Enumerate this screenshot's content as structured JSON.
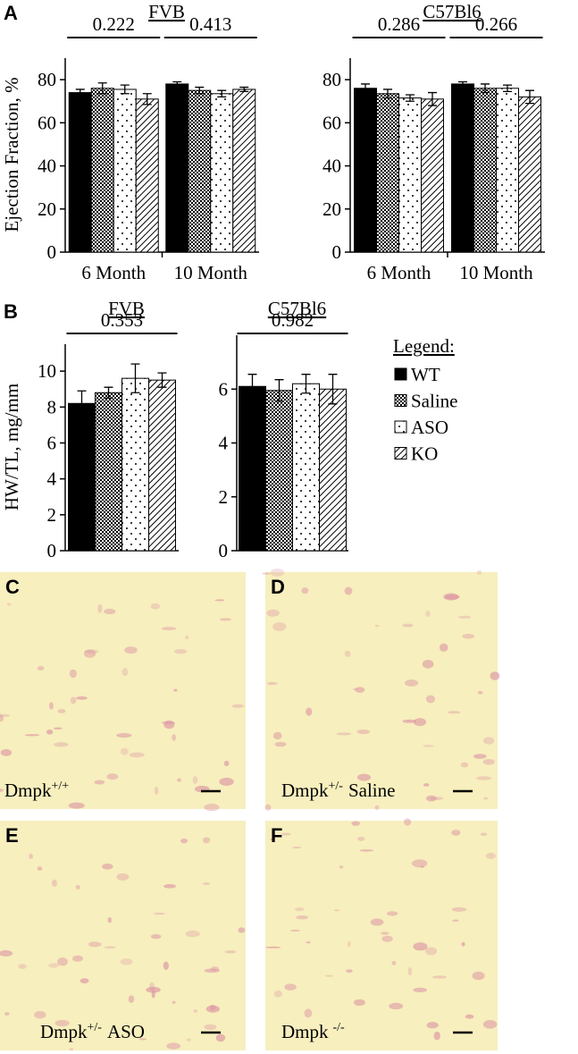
{
  "panels": [
    "A",
    "B",
    "C",
    "D",
    "E",
    "F"
  ],
  "chart_data": [
    {
      "type": "bar",
      "title": "FVB",
      "ylabel": "Ejection Fraction, %",
      "categories": [
        "6 Month",
        "10 Month"
      ],
      "ylim": [
        0,
        90
      ],
      "yticks": [
        0,
        20,
        40,
        60,
        80
      ],
      "annotations": [
        "0.222",
        "0.413"
      ],
      "series": [
        {
          "color": "#000000",
          "pattern": "solid",
          "values": [
            74,
            78
          ],
          "errors": [
            1.5,
            1
          ]
        },
        {
          "color": "#000000",
          "pattern": "checker",
          "values": [
            76,
            75
          ],
          "errors": [
            2.5,
            1.5
          ]
        },
        {
          "color": "#000000",
          "pattern": "dots",
          "values": [
            75.5,
            73.5
          ],
          "errors": [
            2,
            1.5
          ]
        },
        {
          "color": "#000000",
          "pattern": "hatch",
          "values": [
            71,
            75.5
          ],
          "errors": [
            2.5,
            1
          ]
        }
      ]
    },
    {
      "type": "bar",
      "title": "C57Bl6",
      "categories": [
        "6 Month",
        "10 Month"
      ],
      "ylim": [
        0,
        90
      ],
      "yticks": [
        0,
        20,
        40,
        60,
        80
      ],
      "annotations": [
        "0.286",
        "0.266"
      ],
      "series": [
        {
          "color": "#000000",
          "pattern": "solid",
          "values": [
            76,
            78
          ],
          "errors": [
            2,
            1
          ]
        },
        {
          "color": "#000000",
          "pattern": "checker",
          "values": [
            73.5,
            76
          ],
          "errors": [
            2,
            2
          ]
        },
        {
          "color": "#000000",
          "pattern": "dots",
          "values": [
            71.5,
            76
          ],
          "errors": [
            1.5,
            1.5
          ]
        },
        {
          "color": "#000000",
          "pattern": "hatch",
          "values": [
            71,
            72
          ],
          "errors": [
            3,
            3
          ]
        }
      ]
    },
    {
      "type": "bar",
      "title": "FVB",
      "ylabel": "HW/TL, mg/mm",
      "ylim": [
        0,
        11.5
      ],
      "yticks": [
        0,
        2,
        4,
        6,
        8,
        10
      ],
      "annotations": [
        "0.353"
      ],
      "series": [
        {
          "color": "#000000",
          "pattern": "solid",
          "values": [
            8.2
          ],
          "errors": [
            0.7
          ]
        },
        {
          "color": "#000000",
          "pattern": "checker",
          "values": [
            8.8
          ],
          "errors": [
            0.3
          ]
        },
        {
          "color": "#000000",
          "pattern": "dots",
          "values": [
            9.6
          ],
          "errors": [
            0.8
          ]
        },
        {
          "color": "#000000",
          "pattern": "hatch",
          "values": [
            9.5
          ],
          "errors": [
            0.4
          ]
        }
      ]
    },
    {
      "type": "bar",
      "title": "C57Bl6",
      "legend_title": "Legend:",
      "ylim": [
        0,
        8
      ],
      "yticks": [
        0,
        2,
        4,
        6
      ],
      "annotations": [
        "0.982"
      ],
      "series": [
        {
          "name": "WT",
          "color": "#000000",
          "pattern": "solid",
          "values": [
            6.1
          ],
          "errors": [
            0.45
          ]
        },
        {
          "name": "Saline",
          "color": "#000000",
          "pattern": "checker",
          "values": [
            5.95
          ],
          "errors": [
            0.4
          ]
        },
        {
          "name": "ASO",
          "color": "#000000",
          "pattern": "dots",
          "values": [
            6.2
          ],
          "errors": [
            0.35
          ]
        },
        {
          "name": "KO",
          "color": "#000000",
          "pattern": "hatch",
          "values": [
            6.0
          ],
          "errors": [
            0.55
          ]
        }
      ]
    }
  ],
  "images": [
    {
      "label": {
        "text": "Dmpk",
        "sup": "+/+"
      }
    },
    {
      "label": {
        "text": "Dmpk",
        "sup": "+/-",
        "after": "Saline"
      }
    },
    {
      "label": {
        "text": "Dmpk",
        "sup": "+/-",
        "after": "ASO"
      }
    },
    {
      "label": {
        "text": "Dmpk",
        "sup": "-/-"
      }
    }
  ]
}
